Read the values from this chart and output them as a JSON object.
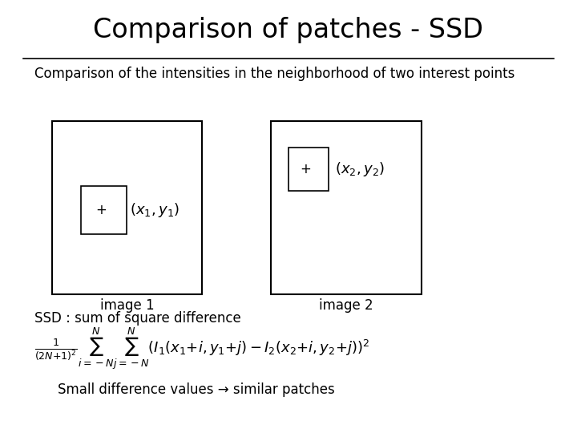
{
  "title": "Comparison of patches - SSD",
  "subtitle": "Comparison of the intensities in the neighborhood of two interest points",
  "image1_label": "image 1",
  "image2_label": "image 2",
  "ssd_label": "SSD : sum of square difference",
  "bottom_text": "Small difference values → similar patches",
  "bg_color": "#ffffff",
  "text_color": "#000000",
  "box_color": "#000000",
  "title_fontsize": 24,
  "subtitle_fontsize": 12,
  "label_fontsize": 12,
  "math_fontsize": 13,
  "body_fontsize": 12
}
